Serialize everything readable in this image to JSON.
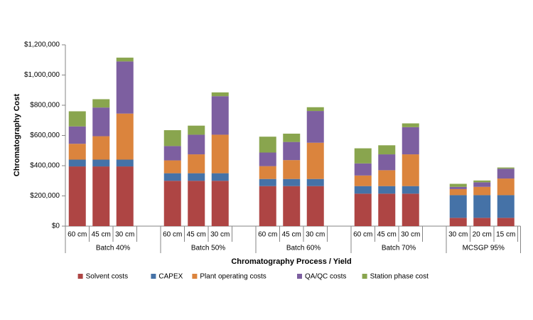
{
  "chart_data": {
    "type": "bar",
    "stacked": true,
    "y_label": "Chromatography Cost",
    "x_label": "Chromatography Process / Yield",
    "groups": [
      {
        "name": "Batch 40%",
        "categories": [
          "60 cm",
          "45 cm",
          "30 cm"
        ]
      },
      {
        "name": "Batch  50%",
        "categories": [
          "60 cm",
          "45 cm",
          "30 cm"
        ]
      },
      {
        "name": "Batch  60%",
        "categories": [
          "60 cm",
          "45 cm",
          "30 cm"
        ]
      },
      {
        "name": "Batch  70%",
        "categories": [
          "60 cm",
          "45 cm",
          "30 cm"
        ]
      },
      {
        "name": "MCSGP  95%",
        "categories": [
          "30 cm",
          "20 cm",
          "15 cm"
        ]
      }
    ],
    "series": [
      {
        "name": "Solvent costs",
        "color": "#ae4544",
        "values": [
          395000,
          395000,
          395000,
          300000,
          300000,
          300000,
          265000,
          265000,
          265000,
          215000,
          215000,
          215000,
          55000,
          55000,
          55000
        ]
      },
      {
        "name": "CAPEX",
        "color": "#4572a7",
        "values": [
          45000,
          45000,
          45000,
          50000,
          50000,
          50000,
          47000,
          47000,
          47000,
          50000,
          50000,
          50000,
          150000,
          150000,
          150000
        ]
      },
      {
        "name": "Plant operating costs",
        "color": "#db843d",
        "values": [
          105000,
          155000,
          305000,
          85000,
          125000,
          255000,
          85000,
          125000,
          240000,
          70000,
          105000,
          210000,
          40000,
          55000,
          110000
        ]
      },
      {
        "name": "QA/QC costs",
        "color": "#7d5fa0",
        "values": [
          115000,
          190000,
          345000,
          95000,
          130000,
          255000,
          90000,
          120000,
          210000,
          80000,
          105000,
          180000,
          15000,
          30000,
          65000
        ]
      },
      {
        "name": "Station phase cost",
        "color": "#89a54e",
        "values": [
          100000,
          55000,
          25000,
          105000,
          60000,
          25000,
          105000,
          55000,
          25000,
          100000,
          60000,
          25000,
          20000,
          12000,
          8000
        ]
      }
    ],
    "ylim": [
      0,
      1200000
    ],
    "yticks": [
      {
        "value": 0,
        "label": "$0"
      },
      {
        "value": 200000,
        "label": "$200,000"
      },
      {
        "value": 400000,
        "label": "$400,000"
      },
      {
        "value": 600000,
        "label": "$600,000"
      },
      {
        "value": 800000,
        "label": "$800,000"
      },
      {
        "value": 1000000,
        "label": "$1,000,000"
      },
      {
        "value": 1200000,
        "label": "$1,200,000"
      }
    ],
    "grid": false,
    "legend": "bottom"
  }
}
